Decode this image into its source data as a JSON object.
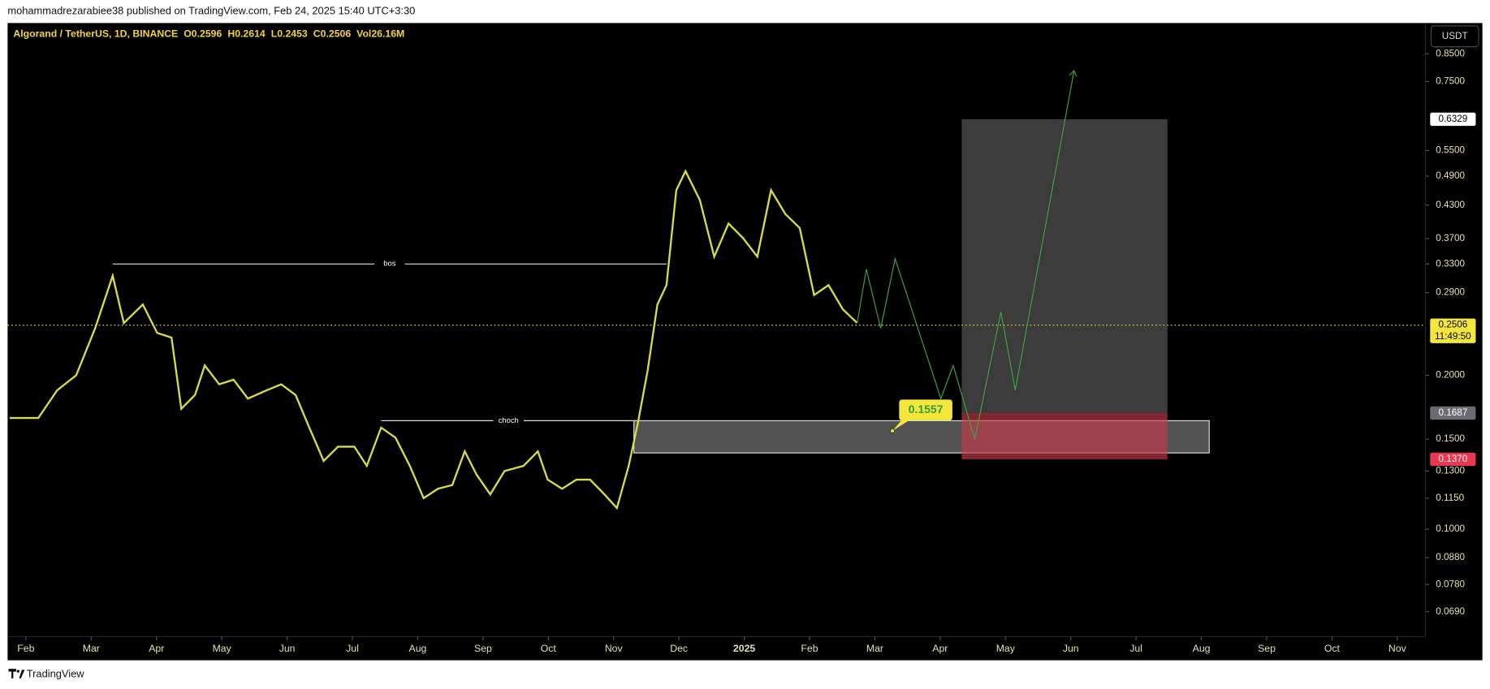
{
  "header": {
    "publisher": "mohammadrezarabiee38 published on TradingView.com, Feb 24, 2025 15:40 UTC+3:30"
  },
  "footer": {
    "brand": "TradingView"
  },
  "chart_data": {
    "type": "line",
    "title": "Algorand / TetherUS, 1D, BINANCE",
    "ohlc": [
      "O0.2596",
      "H0.2614",
      "L0.2453",
      "C0.2506",
      "Vol26.16M"
    ],
    "currency": "USDT",
    "yscale": "log",
    "color": "#d9dc48",
    "x": [
      -0.25,
      0.19,
      0.48,
      0.77,
      1.06,
      1.33,
      1.5,
      1.79,
      2.01,
      2.23,
      2.38,
      2.59,
      2.74,
      2.96,
      3.18,
      3.4,
      3.69,
      3.91,
      4.13,
      4.34,
      4.56,
      4.78,
      5.03,
      5.22,
      5.44,
      5.66,
      5.88,
      6.09,
      6.31,
      6.53,
      6.72,
      6.9,
      7.11,
      7.33,
      7.62,
      7.84,
      7.99,
      8.21,
      8.43,
      8.64,
      8.86,
      9.05,
      9.23,
      9.37,
      9.52,
      9.67,
      9.81,
      9.96,
      10.1,
      10.32,
      10.54,
      10.76,
      10.98,
      11.2,
      11.41,
      11.63,
      11.85,
      12.07,
      12.29,
      12.51,
      12.73
    ],
    "values": [
      0.165,
      0.165,
      0.187,
      0.2,
      0.247,
      0.313,
      0.253,
      0.275,
      0.242,
      0.237,
      0.172,
      0.183,
      0.209,
      0.192,
      0.196,
      0.18,
      0.187,
      0.192,
      0.183,
      0.158,
      0.136,
      0.145,
      0.145,
      0.133,
      0.158,
      0.151,
      0.133,
      0.115,
      0.12,
      0.122,
      0.142,
      0.128,
      0.117,
      0.13,
      0.133,
      0.142,
      0.125,
      0.12,
      0.125,
      0.125,
      0.117,
      0.11,
      0.133,
      0.161,
      0.204,
      0.275,
      0.3,
      0.46,
      0.501,
      0.44,
      0.341,
      0.396,
      0.371,
      0.341,
      0.46,
      0.413,
      0.388,
      0.287,
      0.3,
      0.269,
      0.253
    ],
    "xlim": [
      -0.28,
      21.43
    ],
    "ylim": [
      0.0617,
      0.972
    ],
    "xticks": [
      {
        "value": 0,
        "label": "Feb"
      },
      {
        "value": 1,
        "label": "Mar"
      },
      {
        "value": 2,
        "label": "Apr"
      },
      {
        "value": 3,
        "label": "May"
      },
      {
        "value": 4,
        "label": "Jun"
      },
      {
        "value": 5,
        "label": "Jul"
      },
      {
        "value": 6,
        "label": "Aug"
      },
      {
        "value": 7,
        "label": "Sep"
      },
      {
        "value": 8,
        "label": "Oct"
      },
      {
        "value": 9,
        "label": "Nov"
      },
      {
        "value": 10,
        "label": "Dec"
      },
      {
        "value": 11,
        "label": "2025"
      },
      {
        "value": 12,
        "label": "Feb"
      },
      {
        "value": 13,
        "label": "Mar"
      },
      {
        "value": 14,
        "label": "Apr"
      },
      {
        "value": 15,
        "label": "May"
      },
      {
        "value": 16,
        "label": "Jun"
      },
      {
        "value": 17,
        "label": "Jul"
      },
      {
        "value": 18,
        "label": "Aug"
      },
      {
        "value": 19,
        "label": "Sep"
      },
      {
        "value": 20,
        "label": "Oct"
      },
      {
        "value": 21,
        "label": "Nov"
      }
    ],
    "yticks": [
      {
        "value": 0.069,
        "label": "0.0690"
      },
      {
        "value": 0.078,
        "label": "0.0780"
      },
      {
        "value": 0.088,
        "label": "0.0880"
      },
      {
        "value": 0.1,
        "label": "0.1000"
      },
      {
        "value": 0.115,
        "label": "0.1150"
      },
      {
        "value": 0.13,
        "label": "0.1300"
      },
      {
        "value": 0.15,
        "label": "0.1500"
      },
      {
        "value": 0.2,
        "label": "0.2000"
      },
      {
        "value": 0.29,
        "label": "0.2900"
      },
      {
        "value": 0.33,
        "label": "0.3300"
      },
      {
        "value": 0.37,
        "label": "0.3700"
      },
      {
        "value": 0.43,
        "label": "0.4300"
      },
      {
        "value": 0.49,
        "label": "0.4900"
      },
      {
        "value": 0.55,
        "label": "0.5500"
      },
      {
        "value": 0.75,
        "label": "0.7500"
      },
      {
        "value": 0.85,
        "label": "0.8500"
      }
    ],
    "last_price": {
      "value": 0.2506,
      "label": "0.2506"
    },
    "countdown": "11:49:50",
    "levels": [
      {
        "label": "bos",
        "value": 0.33,
        "x": [
          1.33,
          9.81
        ]
      },
      {
        "label": "choch",
        "value": 0.163,
        "x": [
          5.44,
          9.34
        ]
      }
    ],
    "zone": {
      "x": [
        9.31,
        18.12
      ],
      "y": [
        0.141,
        0.163
      ]
    },
    "position": {
      "x": [
        14.33,
        17.48
      ],
      "target": {
        "value": 0.6329,
        "label": "0.6329"
      },
      "entry": {
        "value": 0.1687,
        "label": "0.1687"
      },
      "stop": {
        "value": 0.137,
        "label": "0.1370"
      }
    },
    "callout": {
      "value": 0.1557,
      "x": 13.27
    },
    "projection": {
      "x": [
        12.73,
        12.87,
        13.09,
        13.31,
        14.01,
        14.2,
        14.53,
        14.93,
        15.15,
        16.05
      ],
      "y": [
        0.253,
        0.3225,
        0.247,
        0.338,
        0.18,
        0.209,
        0.15,
        0.266,
        0.187,
        0.788
      ]
    }
  }
}
